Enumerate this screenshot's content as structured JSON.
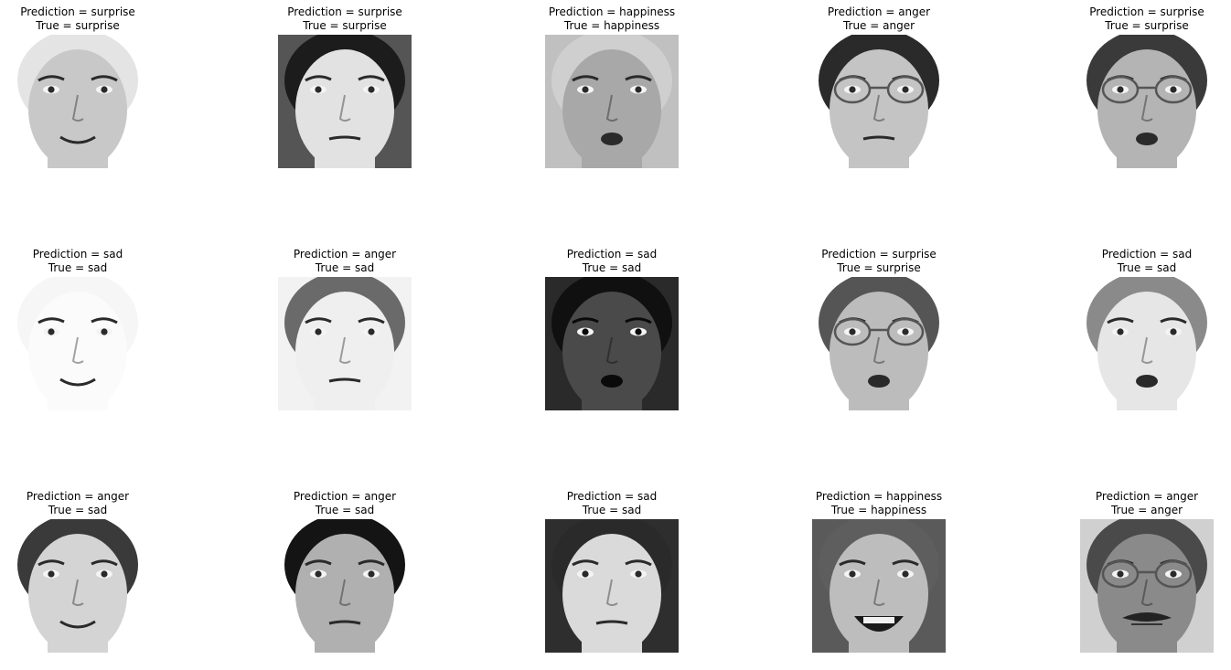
{
  "prediction_prefix": "Prediction = ",
  "true_prefix": "True = ",
  "panels": [
    {
      "prediction": "surprise",
      "true_label": "surprise",
      "face": {
        "tone": "#c8c8c8",
        "bg": "#ffffff",
        "hair": "#e4e4e4",
        "glasses": false,
        "mouth": "smile",
        "dark_bg": false
      }
    },
    {
      "prediction": "surprise",
      "true_label": "surprise",
      "face": {
        "tone": "#e2e2e2",
        "bg": "#555555",
        "hair": "#1c1c1c",
        "glasses": false,
        "mouth": "neutral",
        "dark_bg": false
      }
    },
    {
      "prediction": "happiness",
      "true_label": "happiness",
      "face": {
        "tone": "#a8a8a8",
        "bg": "#c0c0c0",
        "hair": "#cfcfcf",
        "glasses": false,
        "mouth": "open",
        "dark_bg": false
      }
    },
    {
      "prediction": "anger",
      "true_label": "anger",
      "face": {
        "tone": "#c4c4c4",
        "bg": "#ffffff",
        "hair": "#2a2a2a",
        "glasses": true,
        "mouth": "neutral",
        "dark_bg": false
      }
    },
    {
      "prediction": "surprise",
      "true_label": "surprise",
      "face": {
        "tone": "#b4b4b4",
        "bg": "#ffffff",
        "hair": "#3a3a3a",
        "glasses": true,
        "mouth": "open",
        "dark_bg": false
      }
    },
    {
      "prediction": "sad",
      "true_label": "sad",
      "face": {
        "tone": "#fbfbfb",
        "bg": "#ffffff",
        "hair": "#f6f6f6",
        "glasses": false,
        "mouth": "smile",
        "dark_bg": false
      }
    },
    {
      "prediction": "anger",
      "true_label": "sad",
      "face": {
        "tone": "#efefef",
        "bg": "#f2f2f2",
        "hair": "#6a6a6a",
        "glasses": false,
        "mouth": "neutral",
        "dark_bg": false
      }
    },
    {
      "prediction": "sad",
      "true_label": "sad",
      "face": {
        "tone": "#4a4a4a",
        "bg": "#2a2a2a",
        "hair": "#101010",
        "glasses": false,
        "mouth": "open",
        "dark_bg": true
      }
    },
    {
      "prediction": "surprise",
      "true_label": "surprise",
      "face": {
        "tone": "#bcbcbc",
        "bg": "#ffffff",
        "hair": "#555555",
        "glasses": true,
        "mouth": "open",
        "dark_bg": false
      }
    },
    {
      "prediction": "sad",
      "true_label": "sad",
      "face": {
        "tone": "#e6e6e6",
        "bg": "#ffffff",
        "hair": "#8a8a8a",
        "glasses": false,
        "mouth": "open",
        "dark_bg": false
      }
    },
    {
      "prediction": "anger",
      "true_label": "sad",
      "face": {
        "tone": "#d4d4d4",
        "bg": "#ffffff",
        "hair": "#3a3a3a",
        "glasses": false,
        "mouth": "smile",
        "dark_bg": false
      }
    },
    {
      "prediction": "anger",
      "true_label": "sad",
      "face": {
        "tone": "#b0b0b0",
        "bg": "#ffffff",
        "hair": "#141414",
        "glasses": false,
        "mouth": "neutral",
        "dark_bg": false
      }
    },
    {
      "prediction": "sad",
      "true_label": "sad",
      "face": {
        "tone": "#dadada",
        "bg": "#2e2e2e",
        "hair": "#2a2a2a",
        "glasses": false,
        "mouth": "neutral",
        "dark_bg": false
      }
    },
    {
      "prediction": "happiness",
      "true_label": "happiness",
      "face": {
        "tone": "#bdbdbd",
        "bg": "#5a5a5a",
        "hair": "#5e5e5e",
        "glasses": false,
        "mouth": "laugh",
        "dark_bg": false
      }
    },
    {
      "prediction": "anger",
      "true_label": "anger",
      "face": {
        "tone": "#8a8a8a",
        "bg": "#d0d0d0",
        "hair": "#4a4a4a",
        "glasses": true,
        "mouth": "beard",
        "dark_bg": false
      }
    }
  ]
}
